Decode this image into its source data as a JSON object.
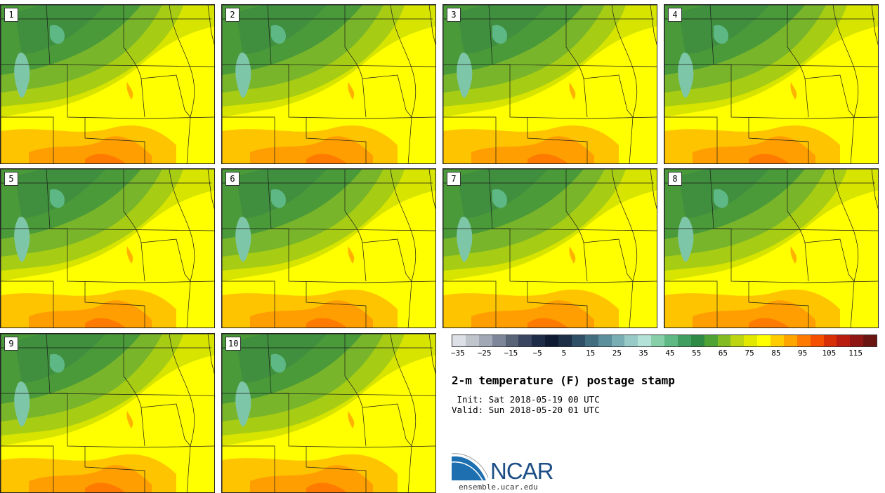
{
  "panels": [
    {
      "label": "1"
    },
    {
      "label": "2"
    },
    {
      "label": "3"
    },
    {
      "label": "4"
    },
    {
      "label": "5"
    },
    {
      "label": "6"
    },
    {
      "label": "7"
    },
    {
      "label": "8"
    },
    {
      "label": "9"
    },
    {
      "label": "10"
    }
  ],
  "colorbar": {
    "colors": [
      "#dde0e6",
      "#c0c4cc",
      "#a2a8b5",
      "#7e8799",
      "#5a6478",
      "#3a4660",
      "#1f2c48",
      "#0f1a33",
      "#1c2f47",
      "#2e4f66",
      "#426e80",
      "#5b8f9c",
      "#79afb4",
      "#98cac7",
      "#b3e3d8",
      "#86cfa8",
      "#5fb985",
      "#3f9e60",
      "#2f8a45",
      "#4fa335",
      "#82bb22",
      "#bcd512",
      "#e2e800",
      "#ffff00",
      "#ffcc00",
      "#ffa500",
      "#ff7a00",
      "#f45000",
      "#d82f06",
      "#b81d10",
      "#8f1612",
      "#6b1512"
    ],
    "tick_labels": [
      "−35",
      "−25",
      "−15",
      "−5",
      "5",
      "15",
      "25",
      "35",
      "45",
      "55",
      "65",
      "75",
      "85",
      "95",
      "105",
      "115"
    ]
  },
  "title": "2-m temperature (F) postage stamp",
  "init_line": " Init: Sat 2018-05-19 00 UTC",
  "valid_line": "Valid: Sun 2018-05-20 01 UTC",
  "logo_text": "NCAR",
  "site": "ensemble.ucar.edu"
}
